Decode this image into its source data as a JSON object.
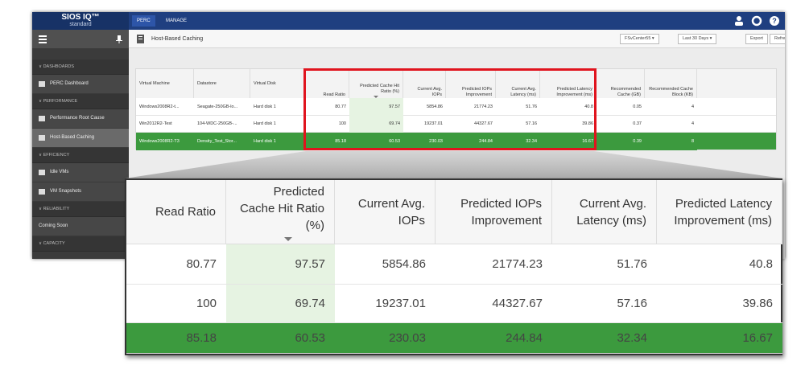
{
  "app": {
    "logo": "SIOS IQ™",
    "edition": "standard",
    "tabs": [
      "PERC",
      "MANAGE"
    ]
  },
  "sidebar": {
    "groups": [
      {
        "title": "DASHBOARDS",
        "items": [
          "PERC Dashboard"
        ]
      },
      {
        "title": "PERFORMANCE",
        "items": [
          "Performance Root Cause",
          "Host-Based Caching"
        ]
      },
      {
        "title": "EFFICIENCY",
        "items": [
          "Idle VMs",
          "VM Snapshots"
        ]
      },
      {
        "title": "RELIABILITY",
        "items": [
          "Coming Soon"
        ]
      },
      {
        "title": "CAPACITY",
        "items": []
      }
    ]
  },
  "page": {
    "title": "Host-Based Caching",
    "vcenter": "FSvCenter55",
    "range": "Last 30 Days",
    "buttons": [
      "Export",
      "Refresh"
    ]
  },
  "table": {
    "headers": [
      "Virtual Machine",
      "Datastore",
      "Virtual Disk",
      "Read Ratio",
      "Predicted Cache Hit Ratio (%)",
      "Current Avg. IOPs",
      "Predicted IOPs Improvement",
      "Current Avg. Latency (ms)",
      "Predicted Latency Improvement (ms)",
      "Recommended Cache (GB)",
      "Recommended Cache Block (KB)"
    ],
    "rows": [
      [
        "Windows2008R2-t...",
        "Seagate-250GB-lo...",
        "Hard disk 1",
        "80.77",
        "97.57",
        "5854.86",
        "21774.23",
        "51.76",
        "40.8",
        "0.05",
        "4"
      ],
      [
        "Win2012R2-Test",
        "104-WDC-250GB-...",
        "Hard disk 1",
        "100",
        "69.74",
        "19237.01",
        "44327.67",
        "57.16",
        "39.86",
        "0.37",
        "4"
      ],
      [
        "Windows2008R2-T3",
        "Density_Test_Stor...",
        "Hard disk 1",
        "85.18",
        "60.53",
        "230.03",
        "244.84",
        "32.34",
        "16.67",
        "0.39",
        "8"
      ]
    ]
  }
}
